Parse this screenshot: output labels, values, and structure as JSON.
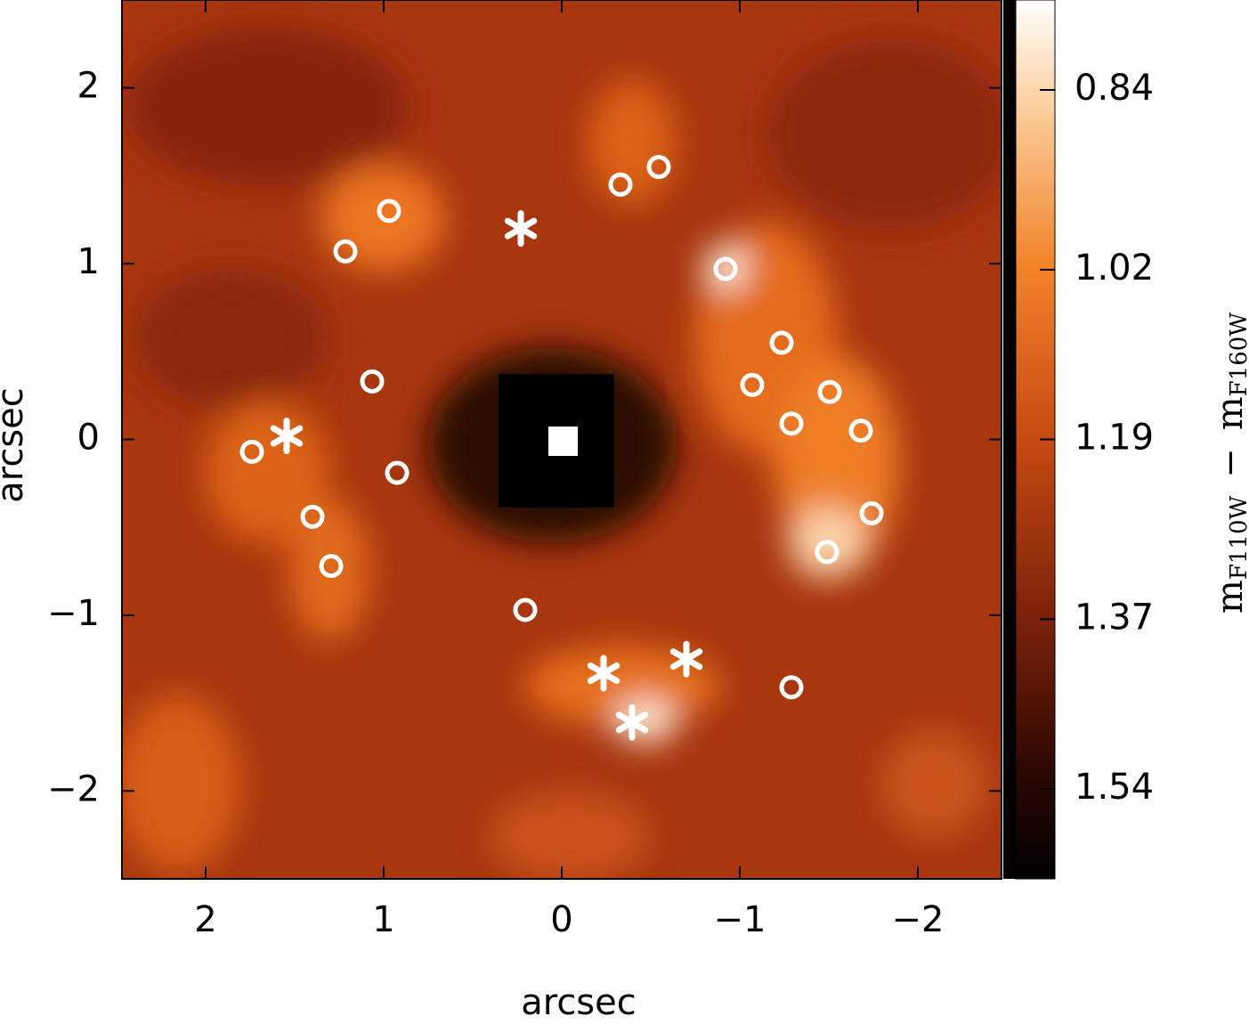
{
  "chart_data": {
    "type": "scatter",
    "x_label": "arcsec",
    "y_label": "arcsec",
    "xlim": [
      2.47,
      -2.47
    ],
    "ylim": [
      -2.5,
      2.5
    ],
    "xticks": [
      2,
      1,
      0,
      {
        "value": -1,
        "label": "−1"
      },
      {
        "value": -2,
        "label": "−2"
      }
    ],
    "yticks": [
      {
        "value": -2,
        "label": "−2"
      },
      {
        "value": -1,
        "label": "−1"
      },
      0,
      1,
      2
    ],
    "series": [
      {
        "marker": "circle",
        "color": "#ffffff",
        "x": [
          -0.33,
          -0.545,
          0.97,
          1.215,
          -0.92,
          -1.235,
          -1.07,
          -1.505,
          -1.29,
          -1.68,
          1.065,
          1.74,
          0.925,
          1.4,
          1.295,
          -1.74,
          -1.49,
          0.205,
          -1.29
        ],
        "y": [
          1.45,
          1.55,
          1.3,
          1.07,
          0.97,
          0.55,
          0.31,
          0.27,
          0.09,
          0.05,
          0.33,
          -0.07,
          -0.19,
          -0.44,
          -0.72,
          -0.42,
          -0.64,
          -0.97,
          -1.41
        ]
      },
      {
        "marker": "star",
        "color": "#ffffff",
        "x": [
          0.23,
          1.545,
          -0.235,
          -0.7,
          -0.395
        ],
        "y": [
          1.2,
          0.02,
          -1.33,
          -1.25,
          -1.61
        ]
      }
    ],
    "colorbar": {
      "clim": [
        0.75,
        1.63
      ],
      "ticks": [
        0.84,
        1.02,
        1.19,
        1.37,
        1.54
      ],
      "label": {
        "m1": "m",
        "sub1": "F110W",
        "dash": "−",
        "m2": "m",
        "sub2": "F160W"
      }
    }
  }
}
